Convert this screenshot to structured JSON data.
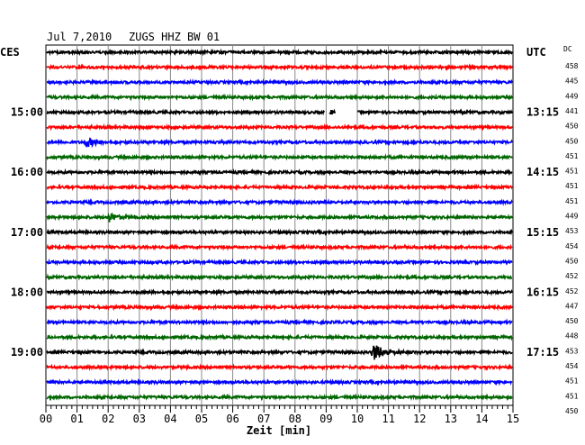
{
  "header": {
    "date": "Jul 7,2010",
    "station": "ZUGS HHZ BW 01",
    "left_timezone": "CES",
    "right_timezone": "UTC",
    "dc_label": "DC"
  },
  "chart_data": {
    "type": "line",
    "title": "Jul 7,2010   ZUGS HHZ BW 01",
    "xlabel": "Zeit [min]",
    "ylabel": "",
    "xlim": [
      0,
      15
    ],
    "x_ticks": [
      "00",
      "01",
      "02",
      "03",
      "04",
      "05",
      "06",
      "07",
      "08",
      "09",
      "10",
      "11",
      "12",
      "13",
      "14",
      "15"
    ],
    "grid": true,
    "trace_colors": [
      "#000000",
      "#ff0000",
      "#0000ff",
      "#006600"
    ],
    "left_hour_labels": [
      {
        "trace": 4,
        "label": "15:00"
      },
      {
        "trace": 8,
        "label": "16:00"
      },
      {
        "trace": 12,
        "label": "17:00"
      },
      {
        "trace": 16,
        "label": "18:00"
      },
      {
        "trace": 20,
        "label": "19:00"
      }
    ],
    "right_hour_labels": [
      {
        "trace": 0,
        "label": "UTC"
      },
      {
        "trace": 4,
        "label": "13:15"
      },
      {
        "trace": 8,
        "label": "14:15"
      },
      {
        "trace": 12,
        "label": "15:15"
      },
      {
        "trace": 16,
        "label": "16:15"
      },
      {
        "trace": 20,
        "label": "17:15"
      }
    ],
    "dc_offsets": [
      458,
      445,
      449,
      441,
      450,
      450,
      451,
      451,
      451,
      451,
      449,
      453,
      454,
      450,
      452,
      452,
      447,
      450,
      448,
      453,
      454,
      451,
      451,
      450
    ],
    "gaps": [
      {
        "trace": 4,
        "from_min": 8.95,
        "to_min": 9.1
      },
      {
        "trace": 4,
        "from_min": 9.3,
        "to_min": 10.0
      }
    ],
    "events": [
      {
        "trace": 6,
        "at_min": 1.3,
        "amplitude": "small"
      },
      {
        "trace": 11,
        "at_min": 2.0,
        "amplitude": "small"
      },
      {
        "trace": 20,
        "at_min": 10.5,
        "amplitude": "large"
      }
    ]
  }
}
